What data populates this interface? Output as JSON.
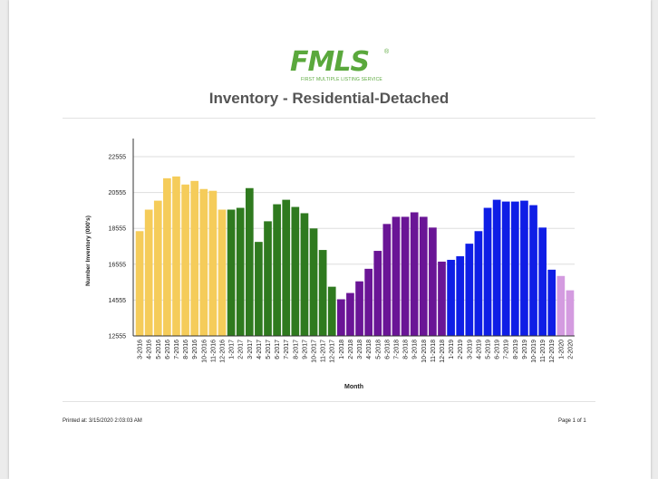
{
  "logo": {
    "text": "FMLS",
    "registered": "®",
    "tagline": "FIRST MULTIPLE LISTING SERVICE",
    "color": "#5aa83c"
  },
  "report_title": "Inventory - Residential-Detached",
  "footer": {
    "printed_label": "Printed at:",
    "printed_value": "3/15/2020 2:03:03 AM",
    "page": "Page 1 of 1"
  },
  "chart_data": {
    "type": "bar",
    "title": "",
    "xlabel": "Month",
    "ylabel": "Number Inventory (000's)",
    "ylim": [
      12555,
      22555
    ],
    "yticks": [
      12555,
      14555,
      16555,
      18555,
      20555,
      22555
    ],
    "grid": true,
    "legend": "none",
    "categories": [
      "3-2016",
      "4-2016",
      "5-2016",
      "6-2016",
      "7-2016",
      "8-2016",
      "9-2016",
      "10-2016",
      "11-2016",
      "12-2016",
      "1-2017",
      "2-2017",
      "3-2017",
      "4-2017",
      "5-2017",
      "6-2017",
      "7-2017",
      "8-2017",
      "9-2017",
      "10-2017",
      "11-2017",
      "12-2017",
      "1-2018",
      "2-2018",
      "3-2018",
      "4-2018",
      "5-2018",
      "6-2018",
      "7-2018",
      "8-2018",
      "9-2018",
      "10-2018",
      "11-2018",
      "12-2018",
      "1-2019",
      "2-2019",
      "3-2019",
      "4-2019",
      "5-2019",
      "6-2019",
      "7-2019",
      "8-2019",
      "9-2019",
      "10-2019",
      "11-2019",
      "12-2019",
      "1-2020",
      "2-2020"
    ],
    "values": [
      18400,
      19600,
      20100,
      21350,
      21450,
      21000,
      21200,
      20750,
      20650,
      19600,
      19600,
      19700,
      20800,
      17800,
      18950,
      19900,
      20150,
      19750,
      19400,
      18550,
      17350,
      15300,
      14600,
      14950,
      15600,
      16300,
      17300,
      18800,
      19200,
      19200,
      19450,
      19200,
      18600,
      16700,
      16800,
      17000,
      17700,
      18400,
      19700,
      20150,
      20050,
      20050,
      20100,
      19850,
      18600,
      16250,
      15900,
      15100
    ],
    "colors": [
      "#f5cc5a",
      "#f5cc5a",
      "#f5cc5a",
      "#f5cc5a",
      "#f5cc5a",
      "#f5cc5a",
      "#f5cc5a",
      "#f5cc5a",
      "#f5cc5a",
      "#f5cc5a",
      "#2f7a1f",
      "#2f7a1f",
      "#2f7a1f",
      "#2f7a1f",
      "#2f7a1f",
      "#2f7a1f",
      "#2f7a1f",
      "#2f7a1f",
      "#2f7a1f",
      "#2f7a1f",
      "#2f7a1f",
      "#2f7a1f",
      "#6a1596",
      "#6a1596",
      "#6a1596",
      "#6a1596",
      "#6a1596",
      "#6a1596",
      "#6a1596",
      "#6a1596",
      "#6a1596",
      "#6a1596",
      "#6a1596",
      "#6a1596",
      "#0f1ee6",
      "#0f1ee6",
      "#0f1ee6",
      "#0f1ee6",
      "#0f1ee6",
      "#0f1ee6",
      "#0f1ee6",
      "#0f1ee6",
      "#0f1ee6",
      "#0f1ee6",
      "#0f1ee6",
      "#0f1ee6",
      "#d49be0",
      "#d49be0"
    ]
  }
}
